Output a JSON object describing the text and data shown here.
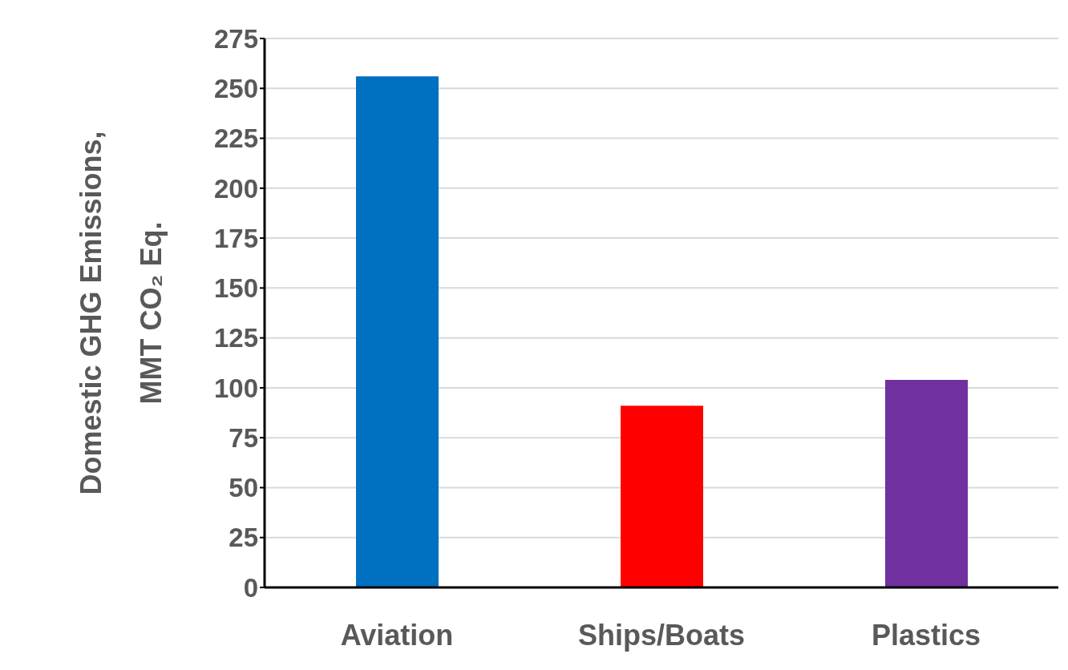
{
  "chart_data": {
    "type": "bar",
    "ylabel": "Domestic GHG Emissions, MMT CO₂ Eq.",
    "categories": [
      "Aviation",
      "Ships/Boats",
      "Plastics"
    ],
    "values": [
      256,
      91,
      104
    ],
    "colors": [
      "#0070c0",
      "#ff0000",
      "#7030a0"
    ],
    "ylim": [
      0,
      275
    ],
    "yticks": [
      0,
      25,
      50,
      75,
      100,
      125,
      150,
      175,
      200,
      225,
      250,
      275
    ],
    "grid": "y",
    "legend": false
  }
}
